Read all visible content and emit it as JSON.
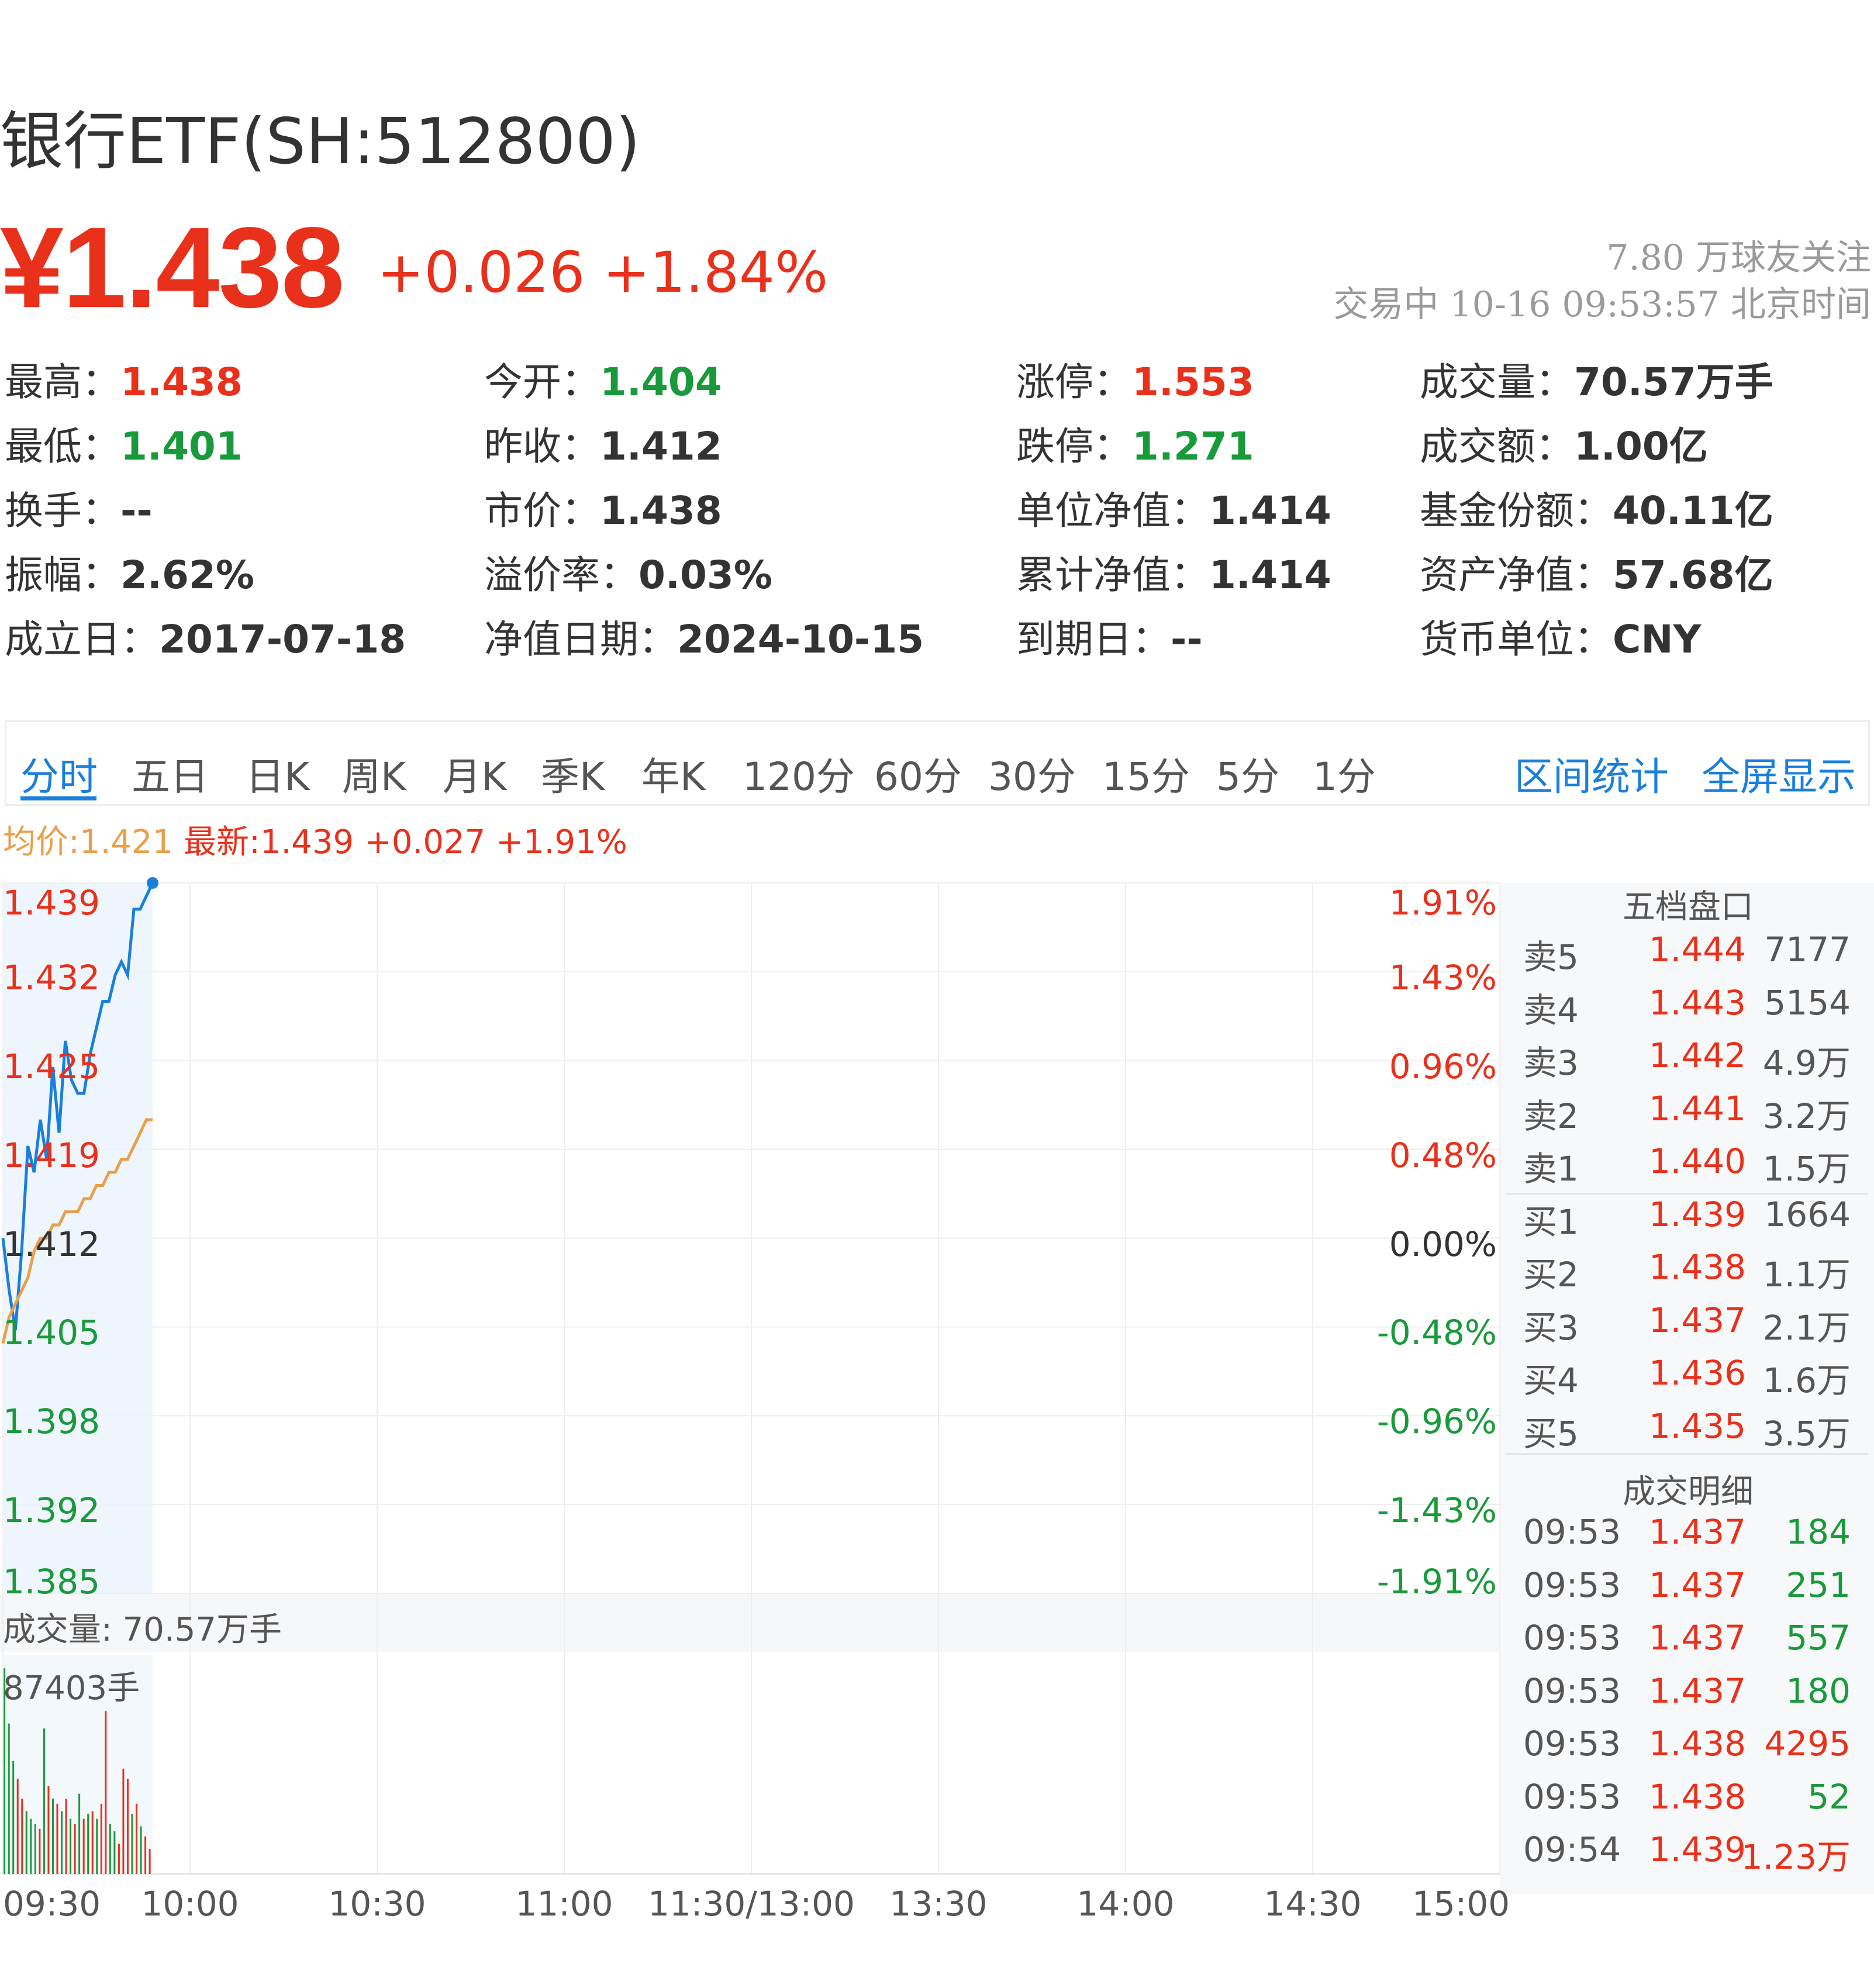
{
  "header": {
    "title": "银行ETF(SH:512800)",
    "price": "¥1.438",
    "change": "+0.026 +1.84%",
    "followers": "7.80 万球友关注",
    "status": "交易中 10-16 09:53:57 北京时间"
  },
  "quote": [
    [
      {
        "label": "最高：",
        "value": "1.438",
        "color": "red"
      },
      {
        "label": "今开：",
        "value": "1.404",
        "color": "green"
      },
      {
        "label": "涨停：",
        "value": "1.553",
        "color": "red"
      },
      {
        "label": "成交量：",
        "value": "70.57万手",
        "color": "dark"
      }
    ],
    [
      {
        "label": "最低：",
        "value": "1.401",
        "color": "green"
      },
      {
        "label": "昨收：",
        "value": "1.412",
        "color": "dark"
      },
      {
        "label": "跌停：",
        "value": "1.271",
        "color": "green"
      },
      {
        "label": "成交额：",
        "value": "1.00亿",
        "color": "dark"
      }
    ],
    [
      {
        "label": "换手：",
        "value": "--",
        "color": "dark"
      },
      {
        "label": "市价：",
        "value": "1.438",
        "color": "dark"
      },
      {
        "label": "单位净值：",
        "value": "1.414",
        "color": "dark"
      },
      {
        "label": "基金份额：",
        "value": "40.11亿",
        "color": "dark"
      }
    ],
    [
      {
        "label": "振幅：",
        "value": "2.62%",
        "color": "dark"
      },
      {
        "label": "溢价率：",
        "value": "0.03%",
        "color": "dark"
      },
      {
        "label": "累计净值：",
        "value": "1.414",
        "color": "dark"
      },
      {
        "label": "资产净值：",
        "value": "57.68亿",
        "color": "dark"
      }
    ],
    [
      {
        "label": "成立日：",
        "value": "2017-07-18",
        "color": "dark"
      },
      {
        "label": "净值日期：",
        "value": "2024-10-15",
        "color": "dark"
      },
      {
        "label": "到期日：",
        "value": "--",
        "color": "dark"
      },
      {
        "label": "货币单位：",
        "value": "CNY",
        "color": "dark"
      }
    ]
  ],
  "tabs": [
    "分时",
    "五日",
    "日K",
    "周K",
    "月K",
    "季K",
    "年K",
    "120分",
    "60分",
    "30分",
    "15分",
    "5分",
    "1分"
  ],
  "active_tab": "分时",
  "tab_links": [
    "区间统计",
    "全屏显示"
  ],
  "legend": {
    "avg": "均价:1.421",
    "latest": "最新:1.439 +0.027 +1.91%"
  },
  "colors": {
    "up": "#e9301a",
    "down": "#199a3a",
    "price_line": "#1a7fdb",
    "avg_line": "#e8a04a",
    "link": "#1a7fdb"
  },
  "orderbook": {
    "title": "五档盘口",
    "asks": [
      {
        "label": "卖5",
        "price": "1.444",
        "vol": "7177"
      },
      {
        "label": "卖4",
        "price": "1.443",
        "vol": "5154"
      },
      {
        "label": "卖3",
        "price": "1.442",
        "vol": "4.9万"
      },
      {
        "label": "卖2",
        "price": "1.441",
        "vol": "3.2万"
      },
      {
        "label": "卖1",
        "price": "1.440",
        "vol": "1.5万"
      }
    ],
    "bids": [
      {
        "label": "买1",
        "price": "1.439",
        "vol": "1664"
      },
      {
        "label": "买2",
        "price": "1.438",
        "vol": "1.1万"
      },
      {
        "label": "买3",
        "price": "1.437",
        "vol": "2.1万"
      },
      {
        "label": "买4",
        "price": "1.436",
        "vol": "1.6万"
      },
      {
        "label": "买5",
        "price": "1.435",
        "vol": "3.5万"
      }
    ]
  },
  "trades": {
    "title": "成交明细",
    "rows": [
      {
        "time": "09:53",
        "price": "1.437",
        "vol": "184",
        "side": "down"
      },
      {
        "time": "09:53",
        "price": "1.437",
        "vol": "251",
        "side": "down"
      },
      {
        "time": "09:53",
        "price": "1.437",
        "vol": "557",
        "side": "down"
      },
      {
        "time": "09:53",
        "price": "1.437",
        "vol": "180",
        "side": "down"
      },
      {
        "time": "09:53",
        "price": "1.438",
        "vol": "4295",
        "side": "up"
      },
      {
        "time": "09:53",
        "price": "1.438",
        "vol": "52",
        "side": "down"
      },
      {
        "time": "09:54",
        "price": "1.439",
        "vol": "1.23万",
        "side": "up"
      }
    ]
  },
  "chart_data": {
    "type": "line",
    "prev_close": 1.412,
    "ylim": [
      1.385,
      1.439
    ],
    "y_ticks_left": [
      "1.439",
      "1.432",
      "1.425",
      "1.419",
      "1.412",
      "1.405",
      "1.398",
      "1.392",
      "1.385"
    ],
    "y_ticks_right": [
      "1.91%",
      "1.43%",
      "0.96%",
      "0.48%",
      "0.00%",
      "-0.48%",
      "-0.96%",
      "-1.43%",
      "-1.91%"
    ],
    "x_ticks": [
      "09:30",
      "10:00",
      "10:30",
      "11:00",
      "11:30/13:00",
      "13:30",
      "14:00",
      "14:30",
      "15:00"
    ],
    "minutes_total": 240,
    "series": [
      {
        "name": "最新",
        "x_minutes": [
          0,
          1,
          2,
          3,
          4,
          5,
          6,
          7,
          8,
          9,
          10,
          11,
          12,
          13,
          14,
          15,
          16,
          17,
          18,
          19,
          20,
          21,
          22,
          23,
          24
        ],
        "values": [
          1.412,
          1.408,
          1.405,
          1.411,
          1.419,
          1.417,
          1.421,
          1.418,
          1.425,
          1.42,
          1.427,
          1.424,
          1.423,
          1.423,
          1.426,
          1.428,
          1.43,
          1.43,
          1.432,
          1.433,
          1.432,
          1.437,
          1.437,
          1.438,
          1.439
        ]
      },
      {
        "name": "均价",
        "x_minutes": [
          0,
          1,
          2,
          3,
          4,
          5,
          6,
          7,
          8,
          9,
          10,
          11,
          12,
          13,
          14,
          15,
          16,
          17,
          18,
          19,
          20,
          21,
          22,
          23,
          24
        ],
        "values": [
          1.404,
          1.406,
          1.407,
          1.408,
          1.409,
          1.411,
          1.412,
          1.412,
          1.413,
          1.413,
          1.414,
          1.414,
          1.414,
          1.415,
          1.415,
          1.416,
          1.416,
          1.417,
          1.417,
          1.418,
          1.418,
          1.419,
          1.42,
          1.421,
          1.421
        ]
      }
    ],
    "volume": {
      "label": "成交量: 70.57万手",
      "max_label": "87403手",
      "max": 87403,
      "values": [
        82000,
        60000,
        45000,
        38000,
        30000,
        25000,
        22000,
        20000,
        18000,
        58000,
        35000,
        30000,
        28000,
        25000,
        30000,
        22000,
        20000,
        32000,
        22000,
        24000,
        25000,
        22000,
        28000,
        65000,
        20000,
        17000,
        12000,
        42000,
        38000,
        24000,
        28000,
        19000,
        15000,
        10000
      ],
      "sides": [
        "down",
        "down",
        "down",
        "up",
        "up",
        "down",
        "down",
        "down",
        "up",
        "down",
        "up",
        "down",
        "up",
        "down",
        "up",
        "down",
        "up",
        "down",
        "up",
        "down",
        "up",
        "down",
        "up",
        "up",
        "down",
        "down",
        "up",
        "up",
        "up",
        "down",
        "up",
        "down",
        "up",
        "up"
      ]
    }
  }
}
